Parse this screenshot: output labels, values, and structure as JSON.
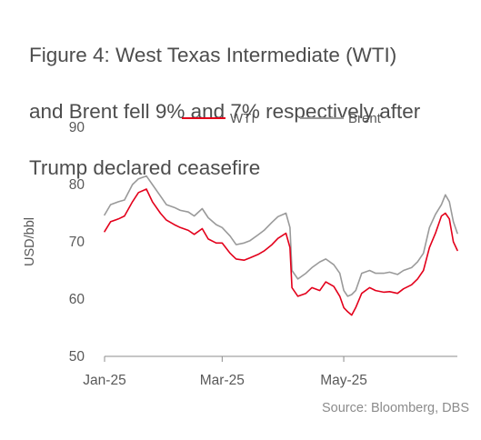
{
  "figure": {
    "title_lines": [
      "Figure 4: West Texas Intermediate (WTI)",
      "and Brent fell 9% and 7% respectively after",
      "Trump declared ceasefire"
    ],
    "source": "Source: Bloomberg, DBS"
  },
  "chart_data": {
    "type": "line",
    "title": "Figure 4: West Texas Intermediate (WTI) and Brent fell 9% and 7% respectively after Trump declared ceasefire",
    "xlabel": "",
    "ylabel": "USD/bbl",
    "ylim": [
      50,
      90
    ],
    "xlim": [
      "2025-01-01",
      "2025-06-27"
    ],
    "yticks": [
      50,
      60,
      70,
      80,
      90
    ],
    "xticks": [
      {
        "date": "2025-01-01",
        "label": "Jan-25"
      },
      {
        "date": "2025-03-01",
        "label": "Mar-25"
      },
      {
        "date": "2025-05-01",
        "label": "May-25"
      }
    ],
    "grid": false,
    "legend_position": "top",
    "x": [
      "2025-01-01",
      "2025-01-04",
      "2025-01-08",
      "2025-01-11",
      "2025-01-15",
      "2025-01-18",
      "2025-01-22",
      "2025-01-25",
      "2025-01-29",
      "2025-02-01",
      "2025-02-05",
      "2025-02-08",
      "2025-02-12",
      "2025-02-15",
      "2025-02-19",
      "2025-02-22",
      "2025-02-26",
      "2025-03-01",
      "2025-03-05",
      "2025-03-08",
      "2025-03-12",
      "2025-03-15",
      "2025-03-19",
      "2025-03-22",
      "2025-03-26",
      "2025-03-29",
      "2025-04-02",
      "2025-04-04",
      "2025-04-05",
      "2025-04-08",
      "2025-04-12",
      "2025-04-15",
      "2025-04-19",
      "2025-04-22",
      "2025-04-26",
      "2025-04-29",
      "2025-05-01",
      "2025-05-03",
      "2025-05-05",
      "2025-05-07",
      "2025-05-10",
      "2025-05-14",
      "2025-05-17",
      "2025-05-21",
      "2025-05-24",
      "2025-05-28",
      "2025-05-31",
      "2025-06-04",
      "2025-06-07",
      "2025-06-10",
      "2025-06-13",
      "2025-06-16",
      "2025-06-19",
      "2025-06-21",
      "2025-06-23",
      "2025-06-25",
      "2025-06-27"
    ],
    "series": [
      {
        "name": "WTI",
        "color": "#e3001b",
        "values": [
          71.8,
          73.5,
          74.0,
          74.5,
          77.0,
          78.6,
          79.2,
          77.0,
          75.0,
          73.8,
          73.0,
          72.5,
          72.0,
          71.3,
          72.3,
          70.5,
          69.8,
          69.8,
          68.0,
          67.0,
          66.8,
          67.2,
          67.8,
          68.4,
          69.5,
          70.6,
          71.5,
          69.0,
          62.0,
          60.5,
          61.0,
          62.0,
          61.5,
          63.0,
          62.2,
          60.5,
          58.5,
          57.8,
          57.2,
          58.5,
          61.0,
          62.0,
          61.5,
          61.2,
          61.3,
          61.0,
          61.8,
          62.5,
          63.5,
          65.0,
          69.0,
          71.5,
          74.5,
          75.0,
          74.0,
          70.0,
          68.5
        ]
      },
      {
        "name": "Brent",
        "color": "#9a9a9a",
        "values": [
          74.7,
          76.5,
          77.0,
          77.3,
          80.0,
          81.0,
          81.5,
          80.0,
          78.0,
          76.5,
          76.0,
          75.5,
          75.2,
          74.5,
          75.8,
          74.2,
          73.0,
          72.5,
          71.0,
          69.5,
          69.8,
          70.2,
          71.2,
          72.0,
          73.4,
          74.4,
          75.0,
          72.5,
          65.0,
          63.5,
          64.5,
          65.5,
          66.5,
          67.0,
          66.0,
          64.5,
          61.5,
          60.5,
          60.8,
          61.5,
          64.5,
          65.0,
          64.5,
          64.5,
          64.7,
          64.3,
          65.0,
          65.5,
          66.5,
          68.0,
          72.5,
          74.8,
          76.5,
          78.2,
          77.0,
          73.5,
          71.5
        ]
      }
    ]
  }
}
